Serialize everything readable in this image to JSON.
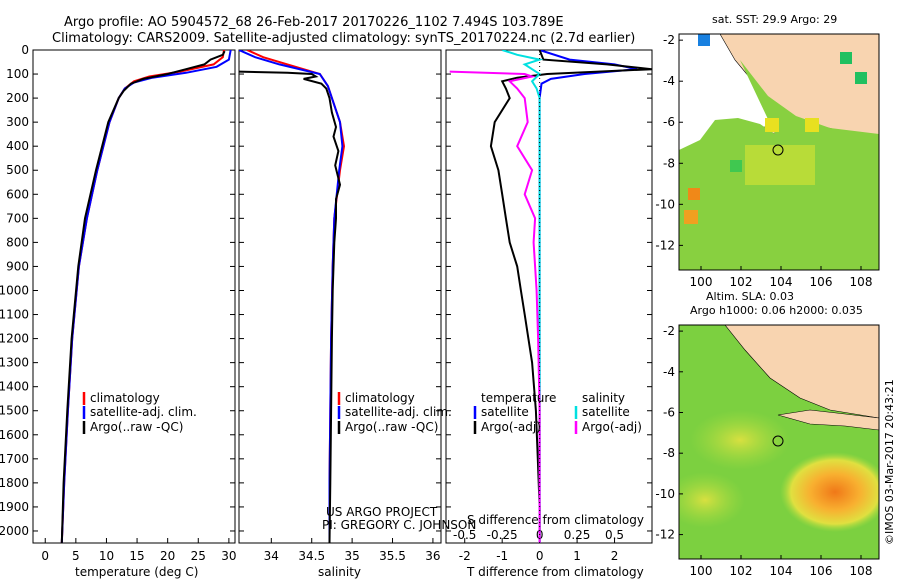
{
  "header": {
    "line1": "Argo profile: AO 5904572_68 26-Feb-2017 20170226_1102 7.494S 103.789E",
    "line2": "Climatology: CARS2009. Satellite-adjusted climatology: synTS_20170224.nc (2.7d earlier)"
  },
  "colors": {
    "clim": "#ff0000",
    "sat": "#0000ff",
    "argo": "#000000",
    "sal_sat": "#00e0e0",
    "sal_argo": "#ff00ff"
  },
  "credits": {
    "line1": "US ARGO PROJECT",
    "line2": "PI: GREGORY C. JOHNSON"
  },
  "stamp": "©IMOS 03-Mar-2017 20:43:21",
  "chart_data": [
    {
      "type": "line",
      "id": "temperature",
      "xlabel": "temperature (deg C)",
      "ylabel": "",
      "xlim": [
        -2,
        31
      ],
      "ylim": [
        2050,
        0
      ],
      "xticks": [
        "0",
        "5",
        "10",
        "15",
        "20",
        "25",
        "30"
      ],
      "yticks": [
        "0",
        "100",
        "200",
        "300",
        "400",
        "500",
        "600",
        "700",
        "800",
        "900",
        "1000",
        "1100",
        "1200",
        "1300",
        "1400",
        "1500",
        "1600",
        "1700",
        "1800",
        "1900",
        "2000"
      ],
      "legend": [
        "climatology",
        "satellite-adj. clim.",
        "Argo(..raw -QC)"
      ],
      "series": [
        {
          "name": "climatology",
          "depth": [
            0,
            30,
            60,
            90,
            110,
            130,
            160,
            200,
            300,
            500,
            700,
            900,
            1200,
            1500,
            1800,
            2050
          ],
          "values": [
            29.2,
            29,
            27.5,
            22,
            17,
            14.5,
            13,
            12,
            10.5,
            8.5,
            6.8,
            5.5,
            4.4,
            3.7,
            3.1,
            2.7
          ]
        },
        {
          "name": "satellite-adj. clim.",
          "depth": [
            0,
            40,
            70,
            95,
            115,
            135,
            160,
            200,
            300,
            500,
            700,
            900,
            1200,
            1500,
            1800,
            2050
          ],
          "values": [
            30.3,
            30,
            28,
            23,
            17.5,
            14.5,
            13,
            12,
            10.5,
            8.5,
            6.8,
            5.5,
            4.4,
            3.7,
            3.1,
            2.7
          ]
        },
        {
          "name": "Argo(..raw -QC)",
          "depth": [
            5,
            20,
            40,
            60,
            80,
            100,
            120,
            140,
            170,
            200,
            300,
            500,
            700,
            900,
            1200,
            1500,
            1800,
            2050
          ],
          "values": [
            29.3,
            29,
            27,
            26,
            23,
            20,
            16,
            14,
            12.8,
            12,
            10.3,
            8.3,
            6.5,
            5.4,
            4.3,
            3.6,
            3.0,
            2.7
          ]
        }
      ]
    },
    {
      "type": "line",
      "id": "salinity",
      "xlabel": "salinity",
      "ylabel": "",
      "xlim": [
        33.6,
        36.1
      ],
      "ylim": [
        2050,
        0
      ],
      "xticks": [
        "34",
        "34.5",
        "35",
        "35.5",
        "36"
      ],
      "legend": [
        "climatology",
        "satellite-adj. clim.",
        "Argo(..raw -QC)"
      ],
      "series": [
        {
          "name": "climatology",
          "depth": [
            0,
            30,
            60,
            100,
            150,
            200,
            300,
            400,
            500,
            700,
            900,
            1200,
            1500,
            1800,
            2050
          ],
          "values": [
            33.7,
            33.9,
            34.2,
            34.6,
            34.7,
            34.75,
            34.85,
            34.9,
            34.85,
            34.78,
            34.76,
            34.74,
            34.73,
            34.72,
            34.72
          ]
        },
        {
          "name": "satellite-adj. clim.",
          "depth": [
            0,
            30,
            60,
            100,
            150,
            200,
            300,
            400,
            500,
            700,
            900,
            1200,
            1500,
            1800,
            2050
          ],
          "values": [
            33.6,
            33.8,
            34.1,
            34.6,
            34.7,
            34.75,
            34.85,
            34.88,
            34.84,
            34.78,
            34.76,
            34.74,
            34.73,
            34.72,
            34.72
          ]
        },
        {
          "name": "Argo(..raw -QC)",
          "depth": [
            90,
            95,
            100,
            110,
            120,
            140,
            160,
            200,
            260,
            320,
            360,
            420,
            480,
            560,
            620,
            700,
            800,
            900,
            1000,
            1200,
            1500,
            1800,
            2050
          ],
          "values": [
            33.6,
            34.2,
            34.5,
            34.55,
            34.4,
            34.62,
            34.68,
            34.72,
            34.75,
            34.8,
            34.77,
            34.83,
            34.79,
            34.85,
            34.8,
            34.8,
            34.78,
            34.77,
            34.76,
            34.75,
            34.74,
            34.73,
            34.72
          ]
        }
      ]
    },
    {
      "type": "line",
      "id": "differences",
      "xlabel": "T difference from climatology",
      "x2label": "S difference from climatology",
      "xlim": [
        -2.5,
        3
      ],
      "x2lim": [
        -0.625,
        0.75
      ],
      "ylim": [
        2050,
        0
      ],
      "xticks": [
        "-2",
        "-1",
        "0",
        "1",
        "2"
      ],
      "x2ticks": [
        "-0.5",
        "-0.25",
        "0",
        "0.25",
        "0.5"
      ],
      "legend": [
        "temperature",
        "satellite",
        "Argo(-adj)",
        "salinity",
        "satellite",
        "Argo(-adj)"
      ],
      "series": [
        {
          "name": "temperature satellite",
          "axis": "T",
          "depth": [
            0,
            40,
            60,
            80,
            100,
            120,
            140,
            200,
            400,
            2050
          ],
          "values": [
            0,
            0.8,
            2.0,
            2.6,
            1.2,
            0.3,
            0.05,
            0,
            0,
            0
          ]
        },
        {
          "name": "temperature Argo(-adj)",
          "axis": "T",
          "depth": [
            0,
            40,
            60,
            80,
            100,
            115,
            130,
            160,
            200,
            300,
            400,
            500,
            600,
            700,
            800,
            900,
            1000,
            1100,
            1200,
            1300,
            1400,
            1500,
            1700,
            1900,
            2050
          ],
          "values": [
            0,
            0.1,
            1.8,
            3.0,
            0.2,
            -0.6,
            -1.0,
            -0.9,
            -0.8,
            -1.2,
            -1.3,
            -1.1,
            -1.0,
            -0.9,
            -0.8,
            -0.6,
            -0.5,
            -0.4,
            -0.3,
            -0.2,
            -0.15,
            -0.1,
            -0.05,
            0,
            0
          ]
        },
        {
          "name": "salinity satellite",
          "axis": "S",
          "depth": [
            0,
            20,
            40,
            60,
            80,
            100,
            130,
            160,
            200,
            300,
            500,
            800,
            1200,
            2050
          ],
          "values": [
            -0.25,
            -0.15,
            0,
            -0.1,
            -0.05,
            0,
            -0.05,
            -0.02,
            0,
            0,
            0,
            0,
            0,
            0
          ]
        },
        {
          "name": "salinity Argo(-adj)",
          "axis": "S",
          "depth": [
            90,
            100,
            110,
            130,
            160,
            200,
            300,
            400,
            500,
            600,
            700,
            800,
            1000,
            1200,
            1500,
            1800,
            2050
          ],
          "values": [
            -0.6,
            -0.1,
            -0.05,
            -0.2,
            -0.15,
            -0.1,
            -0.08,
            -0.15,
            -0.05,
            -0.1,
            -0.03,
            -0.04,
            -0.02,
            -0.01,
            0,
            0,
            0
          ]
        }
      ]
    },
    {
      "type": "heatmap",
      "id": "sst-map",
      "title": "sat. SST: 29.9  Argo: 29",
      "xticks": [
        "100",
        "102",
        "104",
        "106",
        "108"
      ],
      "yticks": [
        "-2",
        "-4",
        "-6",
        "-8",
        "-10",
        "-12"
      ],
      "xlim": [
        98.9,
        108.9
      ],
      "ylim": [
        -13.2,
        -1.7
      ],
      "argo_position": {
        "lon": 103.789,
        "lat": -7.494
      }
    },
    {
      "type": "heatmap",
      "id": "sla-map",
      "title": "Altim. SLA: 0.03",
      "subtitle": "Argo h1000: 0.06  h2000: 0.035",
      "xticks": [
        "100",
        "102",
        "104",
        "106",
        "108"
      ],
      "yticks": [
        "-2",
        "-4",
        "-6",
        "-8",
        "-10",
        "-12"
      ],
      "xlim": [
        98.9,
        108.9
      ],
      "ylim": [
        -13.2,
        -1.7
      ],
      "argo_position": {
        "lon": 103.789,
        "lat": -7.494
      }
    }
  ]
}
